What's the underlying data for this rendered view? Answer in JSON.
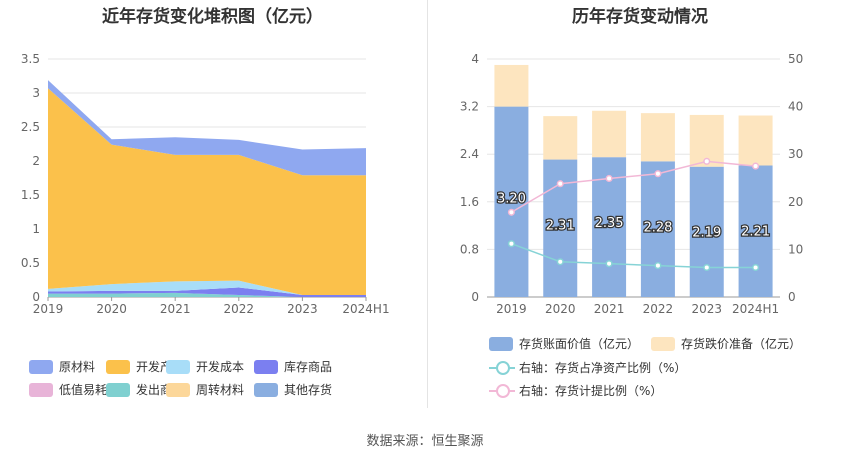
{
  "source": "数据来源：恒生聚源",
  "chart_data": [
    {
      "type": "area",
      "title": "近年存货变化堆积图（亿元）",
      "categories": [
        "2019",
        "2020",
        "2021",
        "2022",
        "2023",
        "2024H1"
      ],
      "ylim": [
        0,
        3.5
      ],
      "yticks": [
        "0",
        "0.5",
        "1",
        "1.5",
        "2",
        "2.5",
        "3",
        "3.5"
      ],
      "series": [
        {
          "name": "原材料",
          "color": "#8fa8f0",
          "values": [
            0.12,
            0.08,
            0.26,
            0.22,
            0.38,
            0.4
          ]
        },
        {
          "name": "开发产品",
          "color": "#fbc14b",
          "values": [
            2.95,
            2.05,
            1.86,
            1.85,
            1.76,
            1.76
          ]
        },
        {
          "name": "开发成本",
          "color": "#a8ddf8",
          "values": [
            0.04,
            0.1,
            0.14,
            0.1,
            0.0,
            0.0
          ]
        },
        {
          "name": "库存商品",
          "color": "#7b7ff0",
          "values": [
            0.03,
            0.04,
            0.03,
            0.11,
            0.03,
            0.03
          ]
        },
        {
          "name": "低值易耗品",
          "color": "#e8b4d8",
          "values": [
            0.0,
            0.0,
            0.0,
            0.0,
            0.0,
            0.0
          ]
        },
        {
          "name": "发出商品",
          "color": "#7fd0d0",
          "values": [
            0.05,
            0.05,
            0.06,
            0.03,
            0.0,
            0.0
          ]
        },
        {
          "name": "周转材料",
          "color": "#fcd79a",
          "values": [
            0.0,
            0.0,
            0.0,
            0.0,
            0.0,
            0.0
          ]
        },
        {
          "name": "其他存货",
          "color": "#8aaee0",
          "values": [
            0.0,
            0.0,
            0.0,
            0.0,
            0.0,
            0.0
          ]
        }
      ],
      "stack_order_bottom_to_top": [
        "其他存货",
        "周转材料",
        "发出商品",
        "低值易耗品",
        "库存商品",
        "开发成本",
        "开发产品",
        "原材料"
      ]
    },
    {
      "type": "bar",
      "title": "历年存货变动情况",
      "categories": [
        "2019",
        "2020",
        "2021",
        "2022",
        "2023",
        "2024H1"
      ],
      "ylim": [
        0,
        4
      ],
      "yticks": [
        "0",
        "0.8",
        "1.6",
        "2.4",
        "3.2",
        "4"
      ],
      "y2lim": [
        0,
        50
      ],
      "y2ticks": [
        "0",
        "10",
        "20",
        "30",
        "40",
        "50"
      ],
      "series": [
        {
          "name": "存货账面价值（亿元）",
          "color": "#8aaee0",
          "values": [
            3.2,
            2.31,
            2.35,
            2.28,
            2.19,
            2.21
          ],
          "labels": [
            "3.20",
            "2.31",
            "2.35",
            "2.28",
            "2.19",
            "2.21"
          ]
        },
        {
          "name": "存货跌价准备（亿元）",
          "color": "#fde5bf",
          "values": [
            0.7,
            0.73,
            0.78,
            0.81,
            0.87,
            0.84
          ]
        }
      ],
      "line_series": [
        {
          "name": "右轴：存货占净资产比例（%）",
          "color": "#86d3d6",
          "values": [
            11.2,
            7.4,
            7.0,
            6.6,
            6.2,
            6.2
          ]
        },
        {
          "name": "右轴：存货计提比例（%）",
          "color": "#f2b8d6",
          "values": [
            17.8,
            23.8,
            24.9,
            25.9,
            28.5,
            27.5
          ]
        }
      ]
    }
  ]
}
